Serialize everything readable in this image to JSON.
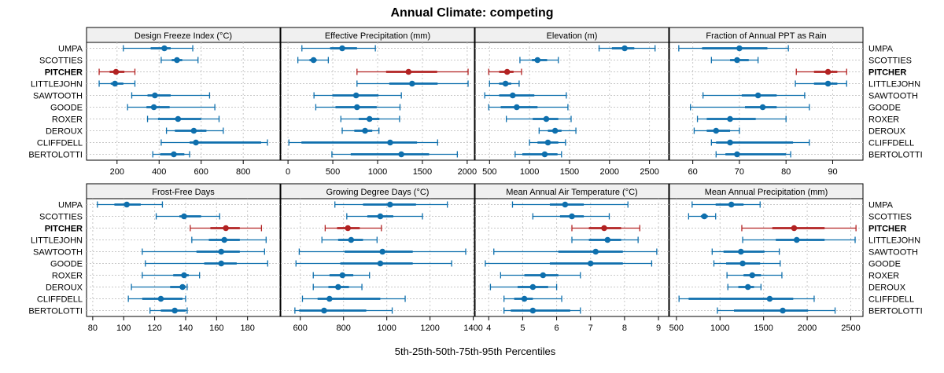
{
  "chart_data": {
    "type": "dotplot-percentile-intervals",
    "title": "Annual Climate: competing",
    "xlabel": "5th-25th-50th-75th-95th Percentiles",
    "highlight_site": "PITCHER",
    "colors": {
      "normal": "#0e6fad",
      "highlight": "#b22222"
    },
    "sites": [
      "UMPA",
      "SCOTTIES",
      "PITCHER",
      "LITTLEJOHN",
      "SAWTOOTH",
      "GOODE",
      "ROXER",
      "DEROUX",
      "CLIFFDELL",
      "BERTOLOTTI"
    ],
    "percentile_order": [
      "p5",
      "p25",
      "p50",
      "p75",
      "p95"
    ],
    "panels": [
      {
        "title": "Design Freeze Index (°C)",
        "xlim": [
          55,
          975
        ],
        "ticks": [
          200,
          400,
          600,
          800
        ],
        "grid": true,
        "values": [
          [
            230,
            360,
            425,
            455,
            560
          ],
          [
            410,
            460,
            485,
            510,
            585
          ],
          [
            115,
            165,
            195,
            235,
            285
          ],
          [
            115,
            170,
            190,
            230,
            285
          ],
          [
            270,
            345,
            380,
            455,
            640
          ],
          [
            250,
            340,
            375,
            450,
            665
          ],
          [
            345,
            395,
            490,
            600,
            685
          ],
          [
            435,
            475,
            565,
            625,
            705
          ],
          [
            410,
            545,
            575,
            885,
            915
          ],
          [
            370,
            405,
            470,
            520,
            545
          ]
        ]
      },
      {
        "title": "Effective Precipitation (mm)",
        "xlim": [
          -80,
          2080
        ],
        "ticks": [
          0,
          500,
          1000,
          1500,
          2000
        ],
        "grid": true,
        "values": [
          [
            155,
            470,
            605,
            770,
            975
          ],
          [
            110,
            240,
            285,
            320,
            450
          ],
          [
            770,
            1095,
            1345,
            1665,
            2010
          ],
          [
            770,
            1130,
            1385,
            1670,
            2010
          ],
          [
            290,
            495,
            760,
            1010,
            1265
          ],
          [
            310,
            530,
            770,
            990,
            1250
          ],
          [
            590,
            790,
            910,
            1020,
            1245
          ],
          [
            605,
            740,
            860,
            940,
            1015
          ],
          [
            10,
            150,
            1140,
            1440,
            1670
          ],
          [
            490,
            700,
            1265,
            1575,
            1890
          ]
        ]
      },
      {
        "title": "Elevation (m)",
        "xlim": [
          320,
          2740
        ],
        "ticks": [
          500,
          1000,
          1500,
          2000,
          2500
        ],
        "grid": true,
        "values": [
          [
            1870,
            2030,
            2190,
            2310,
            2570
          ],
          [
            880,
            1030,
            1100,
            1220,
            1360
          ],
          [
            490,
            620,
            720,
            800,
            900
          ],
          [
            500,
            620,
            700,
            770,
            870
          ],
          [
            440,
            620,
            790,
            1060,
            1460
          ],
          [
            490,
            640,
            840,
            1100,
            1480
          ],
          [
            710,
            1040,
            1210,
            1360,
            1520
          ],
          [
            1120,
            1230,
            1320,
            1400,
            1580
          ],
          [
            1000,
            1100,
            1230,
            1360,
            1450
          ],
          [
            820,
            910,
            1190,
            1350,
            1400
          ]
        ]
      },
      {
        "title": "Fraction of Annual PPT as Rain",
        "xlim": [
          55,
          96.5
        ],
        "ticks": [
          60,
          70,
          80,
          90
        ],
        "grid": true,
        "values": [
          [
            57,
            62,
            70,
            76,
            80.5
          ],
          [
            64,
            68,
            69.5,
            72,
            74
          ],
          [
            82.2,
            86,
            89,
            91,
            93
          ],
          [
            82,
            86,
            89,
            91,
            93
          ],
          [
            62.2,
            70.5,
            74,
            78,
            84
          ],
          [
            59.5,
            71.2,
            75,
            78,
            85
          ],
          [
            61,
            63,
            68,
            73.5,
            80
          ],
          [
            60.3,
            63,
            65,
            68,
            70
          ],
          [
            64,
            65,
            68,
            81.5,
            85
          ],
          [
            65,
            67,
            69.5,
            80,
            81
          ]
        ]
      },
      {
        "title": "Frost-Free Days",
        "xlim": [
          76,
          201
        ],
        "ticks": [
          80,
          100,
          120,
          140,
          160,
          180
        ],
        "grid": true,
        "values": [
          [
            83,
            94,
            102,
            111,
            125
          ],
          [
            121,
            136,
            139,
            150,
            162
          ],
          [
            143,
            156,
            166,
            175,
            189
          ],
          [
            144,
            155,
            165,
            175,
            192
          ],
          [
            112,
            147,
            163,
            175,
            191
          ],
          [
            114,
            152,
            163,
            173,
            193
          ],
          [
            112,
            132,
            139,
            142,
            149
          ],
          [
            105,
            130,
            138,
            140,
            141
          ],
          [
            103,
            112,
            124,
            138,
            140
          ],
          [
            117,
            124,
            133,
            140,
            141
          ]
        ]
      },
      {
        "title": "Growing Degree Days (°C)",
        "xlim": [
          510,
          1405
        ],
        "ticks": [
          600,
          800,
          1000,
          1200,
          1400
        ],
        "grid": true,
        "values": [
          [
            760,
            890,
            1015,
            1135,
            1280
          ],
          [
            815,
            910,
            970,
            1030,
            1165
          ],
          [
            715,
            770,
            820,
            875,
            975
          ],
          [
            700,
            775,
            835,
            890,
            955
          ],
          [
            595,
            805,
            980,
            1120,
            1365
          ],
          [
            580,
            785,
            970,
            1120,
            1300
          ],
          [
            660,
            735,
            795,
            845,
            920
          ],
          [
            660,
            730,
            775,
            825,
            885
          ],
          [
            610,
            680,
            735,
            970,
            1085
          ],
          [
            575,
            595,
            710,
            905,
            1025
          ]
        ]
      },
      {
        "title": "Mean Annual Air Temperature (°C)",
        "xlim": [
          3.6,
          9.3
        ],
        "ticks": [
          4,
          5,
          6,
          7,
          8,
          9
        ],
        "grid": true,
        "values": [
          [
            4.7,
            5.8,
            6.25,
            6.8,
            8.1
          ],
          [
            5.3,
            6.1,
            6.45,
            6.8,
            7.55
          ],
          [
            6.45,
            6.95,
            7.4,
            7.9,
            8.45
          ],
          [
            6.45,
            6.95,
            7.5,
            7.9,
            8.4
          ],
          [
            4.15,
            6.05,
            7.15,
            7.95,
            8.95
          ],
          [
            3.9,
            5.8,
            7.0,
            7.95,
            8.8
          ],
          [
            4.35,
            5.05,
            5.6,
            6.05,
            6.7
          ],
          [
            4.05,
            4.85,
            5.3,
            5.75,
            6.0
          ],
          [
            4.45,
            4.75,
            5.05,
            5.3,
            6.15
          ],
          [
            4.45,
            4.65,
            5.3,
            6.4,
            6.7
          ]
        ]
      },
      {
        "title": "Mean Annual Precipitation (mm)",
        "xlim": [
          420,
          2640
        ],
        "ticks": [
          500,
          1000,
          1500,
          2000,
          2500
        ],
        "grid": true,
        "values": [
          [
            680,
            950,
            1130,
            1270,
            1460
          ],
          [
            640,
            780,
            820,
            860,
            950
          ],
          [
            1250,
            1600,
            1850,
            2200,
            2560
          ],
          [
            1260,
            1640,
            1880,
            2200,
            2550
          ],
          [
            910,
            1040,
            1240,
            1510,
            1680
          ],
          [
            930,
            1070,
            1260,
            1460,
            1690
          ],
          [
            1080,
            1270,
            1370,
            1470,
            1710
          ],
          [
            1090,
            1210,
            1320,
            1390,
            1470
          ],
          [
            530,
            640,
            1570,
            1840,
            2080
          ],
          [
            970,
            1160,
            1720,
            2010,
            2320
          ]
        ]
      }
    ]
  }
}
